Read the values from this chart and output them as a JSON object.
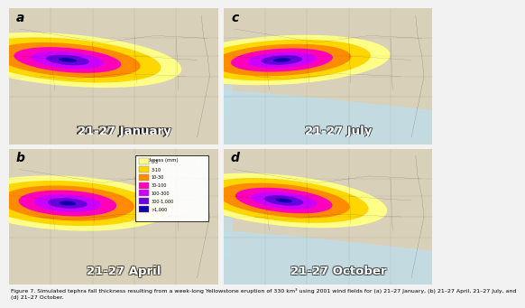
{
  "caption": "Figure 7. Simulated tephra fall thickness resulting from a week-long Yellowstone eruption of 330 km³ using 2001 wind fields for (a) 21–27 January, (b) 21–27 April, 21–27 July, and\n(d) 21–27 October.",
  "panel_order": [
    "a",
    "c",
    "b",
    "d"
  ],
  "labels_order": [
    "21-27 January",
    "21-27 July",
    "21-27 April",
    "21-27 October"
  ],
  "legend_labels": [
    "0-3",
    "3-10",
    "10-30",
    "30-100",
    "100-300",
    "300-1,000",
    ">1,000"
  ],
  "legend_colors": [
    "#FFFF88",
    "#FFD700",
    "#FF8C00",
    "#FF00BB",
    "#CC00FF",
    "#6600DD",
    "#1100AA"
  ],
  "tephra_colors": [
    "#FFFF88",
    "#FFD700",
    "#FF8C00",
    "#FF00BB",
    "#CC00FF",
    "#6600DD",
    "#1100AA"
  ],
  "land_color": "#D8D0B8",
  "water_color": "#B0C8D8",
  "light_blue_color": "#C0DDE8",
  "fig_bg": "#F2F2F2",
  "panel_bg": "#C8C0A8",
  "caption_fontsize": 4.5,
  "label_fontsize": 9.5,
  "letter_fontsize": 10
}
